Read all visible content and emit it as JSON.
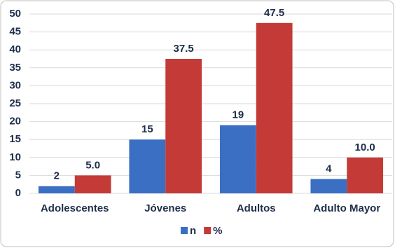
{
  "chart_data": {
    "type": "bar",
    "categories": [
      "Adolescentes",
      "Jóvenes",
      "Adultos",
      "Adulto Mayor"
    ],
    "series": [
      {
        "name": "n",
        "color": "#3a6fc4",
        "values": [
          2,
          15,
          19,
          4
        ]
      },
      {
        "name": "%",
        "color": "#c43a36",
        "values": [
          5.0,
          37.5,
          47.5,
          10.0
        ],
        "value_labels": [
          "5.0",
          "37.5",
          "47.5",
          "10.0"
        ]
      }
    ],
    "ylim": [
      0,
      50
    ],
    "yticks": [
      0,
      5,
      10,
      15,
      20,
      25,
      30,
      35,
      40,
      45,
      50
    ],
    "grid": true,
    "legend": "bottom"
  }
}
